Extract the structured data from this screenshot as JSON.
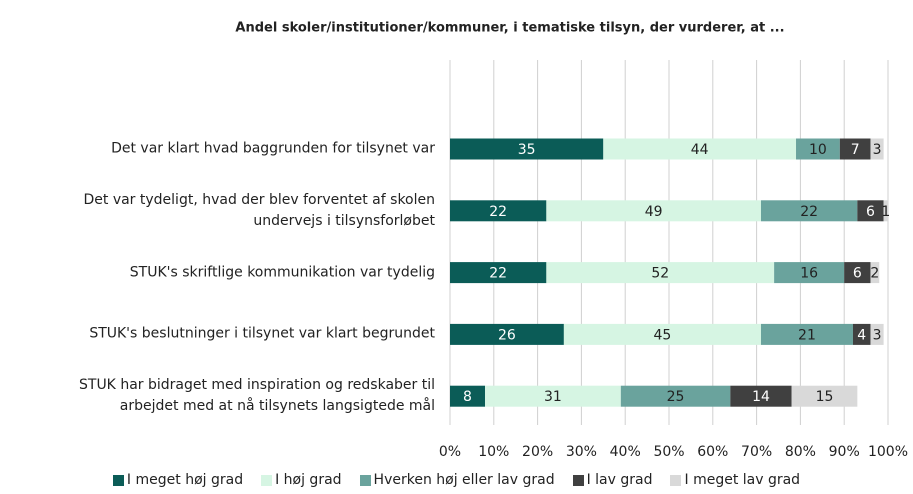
{
  "chart_data": {
    "type": "stacked-bar-horizontal",
    "title": "Andel skoler/institutioner/kommuner, i tematiske tilsyn, der vurderer, at ...",
    "categories": [
      "Det var klart hvad baggrunden for tilsynet var",
      "Det var tydeligt, hvad der blev forventet af skolen\nundervejs i tilsynsforløbet",
      "STUK's skriftlige kommunikation var tydelig",
      "STUK's beslutninger i tilsynet var klart begrundet",
      "STUK har bidraget med inspiration og redskaber til\narbejdet med at nå tilsynets langsigtede mål"
    ],
    "series": [
      {
        "name": "I meget høj grad",
        "color": "#0b5c57",
        "values": [
          35,
          22,
          22,
          26,
          8
        ]
      },
      {
        "name": "I høj grad",
        "color": "#d6f5e3",
        "values": [
          44,
          49,
          52,
          45,
          31
        ]
      },
      {
        "name": "Hverken høj eller lav grad",
        "color": "#6aa39d",
        "values": [
          10,
          22,
          16,
          21,
          25
        ]
      },
      {
        "name": "I lav grad",
        "color": "#404040",
        "values": [
          7,
          6,
          6,
          4,
          14
        ]
      },
      {
        "name": "I meget lav grad",
        "color": "#d9d9d9",
        "values": [
          3,
          1,
          2,
          3,
          15
        ]
      }
    ],
    "xlim": [
      0,
      100
    ],
    "xticks": [
      {
        "value": 0,
        "label": "0%"
      },
      {
        "value": 10,
        "label": "10%"
      },
      {
        "value": 20,
        "label": "20%"
      },
      {
        "value": 30,
        "label": "30%"
      },
      {
        "value": 40,
        "label": "40%"
      },
      {
        "value": 50,
        "label": "50%"
      },
      {
        "value": 60,
        "label": "60%"
      },
      {
        "value": 70,
        "label": "70%"
      },
      {
        "value": 80,
        "label": "80%"
      },
      {
        "value": 90,
        "label": "90%"
      },
      {
        "value": 100,
        "label": "100%"
      }
    ],
    "grid": true,
    "legend": "bottom"
  }
}
